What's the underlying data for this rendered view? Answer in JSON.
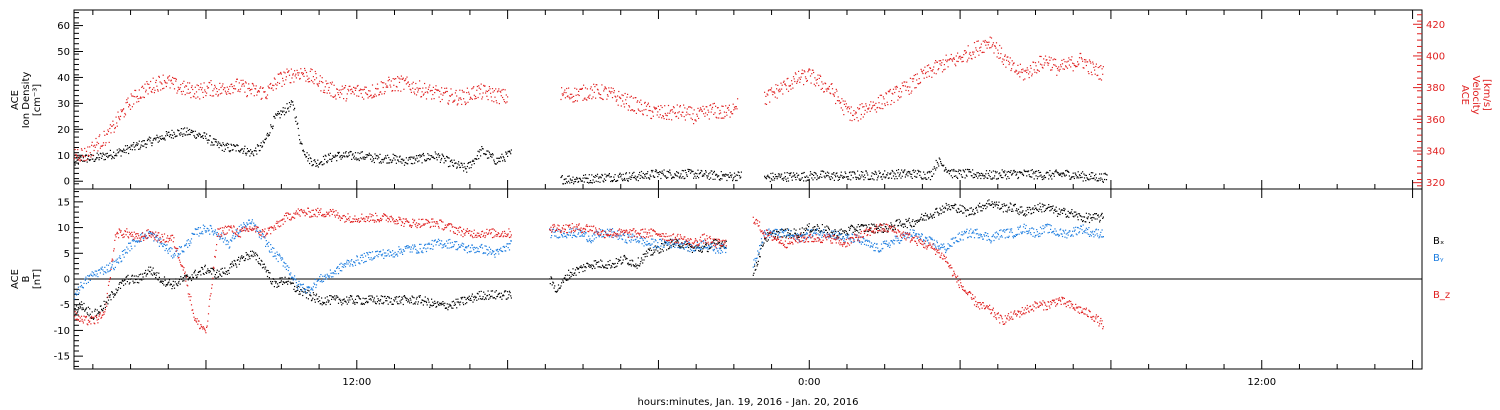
{
  "figure": {
    "xlabel": "hours:minutes, Jan. 19, 2016 - Jan. 20, 2016",
    "x_range_hours": [
      4.5,
      40.25
    ],
    "x_tick_labels": [
      {
        "hour": 12,
        "label": "12:00"
      },
      {
        "hour": 24,
        "label": "0:00"
      },
      {
        "hour": 36,
        "label": "12:00"
      }
    ],
    "x_major_ticks_hours": [
      8,
      12,
      16,
      20,
      24,
      28,
      32,
      36,
      40
    ],
    "x_minor_ticks_hours": [
      5,
      6,
      7,
      9,
      10,
      11,
      13,
      14,
      15,
      17,
      18,
      19,
      21,
      22,
      23,
      25,
      26,
      27,
      29,
      30,
      31,
      33,
      34,
      35,
      37,
      38,
      39
    ]
  },
  "chart_data": [
    {
      "type": "scatter",
      "panel": "top",
      "ylabel_left": [
        "ACE",
        "Ion Density",
        "[cm⁻³]"
      ],
      "ylabel_right": [
        "ACE",
        "Velocity",
        "[km/s]"
      ],
      "ylim_left": [
        -3,
        66
      ],
      "yticks_left": [
        0,
        10,
        20,
        30,
        40,
        50,
        60
      ],
      "ylim_right": [
        316,
        429
      ],
      "yticks_right": [
        320,
        340,
        360,
        380,
        400,
        420
      ],
      "data_gap_hours": [
        [
          16.2,
          17.3
        ],
        [
          22.2,
          22.8
        ]
      ],
      "series": [
        {
          "axis": "left",
          "color": "#000000",
          "x": [
            4.5,
            4.7,
            5.0,
            5.3,
            5.6,
            6.0,
            6.4,
            6.8,
            7.2,
            7.6,
            8.0,
            8.3,
            8.6,
            8.9,
            9.2,
            9.5,
            9.8,
            10.1,
            10.3,
            10.5,
            10.7,
            10.9,
            11.2,
            11.5,
            11.8,
            12.1,
            12.5,
            12.9,
            13.3,
            13.7,
            14.1,
            14.5,
            14.9,
            15.3,
            15.7,
            16.1,
            17.4,
            17.9,
            18.4,
            18.9,
            19.4,
            19.9,
            20.4,
            20.9,
            21.4,
            21.9,
            22.2,
            22.8,
            23.3,
            23.8,
            24.3,
            24.8,
            25.3,
            25.8,
            26.3,
            26.8,
            27.2,
            27.4,
            27.8,
            28.3,
            28.8,
            29.3,
            29.8,
            30.3,
            30.8,
            31.3,
            31.9
          ],
          "y": [
            7,
            9,
            9,
            10,
            11,
            13,
            15,
            17,
            19,
            19,
            17,
            14,
            13,
            13,
            11,
            14,
            24,
            28,
            30,
            15,
            9,
            7,
            9,
            10,
            10,
            10,
            9,
            9,
            8,
            9,
            10,
            7,
            5,
            12,
            8,
            11,
            1,
            1,
            1.5,
            2,
            2,
            3,
            3,
            3,
            2.5,
            2,
            2.5,
            1.5,
            2,
            2,
            2.5,
            2,
            2.5,
            2.5,
            3,
            3,
            2.5,
            8,
            3,
            3,
            2.5,
            3,
            3,
            2.5,
            3,
            2,
            1.5
          ]
        },
        {
          "axis": "right",
          "color": "#e02020",
          "x": [
            4.5,
            4.8,
            5.1,
            5.4,
            5.7,
            6.0,
            6.3,
            6.6,
            6.9,
            7.2,
            7.5,
            7.8,
            8.1,
            8.4,
            8.7,
            9.0,
            9.3,
            9.6,
            9.9,
            10.2,
            10.5,
            10.8,
            11.1,
            11.4,
            11.7,
            12.0,
            12.4,
            12.8,
            13.2,
            13.6,
            14.0,
            14.4,
            14.8,
            15.2,
            15.6,
            16.0,
            17.4,
            17.8,
            18.2,
            18.6,
            19.0,
            19.4,
            19.8,
            20.2,
            20.6,
            21.0,
            21.4,
            21.8,
            22.1,
            22.8,
            23.1,
            23.4,
            23.7,
            24.0,
            24.3,
            24.6,
            24.9,
            25.2,
            25.5,
            25.8,
            26.1,
            26.4,
            26.7,
            27.0,
            27.3,
            27.6,
            27.9,
            28.2,
            28.5,
            28.8,
            29.1,
            29.4,
            29.7,
            30.0,
            30.3,
            30.6,
            30.9,
            31.2,
            31.5,
            31.8
          ],
          "y": [
            339,
            338,
            345,
            350,
            362,
            372,
            378,
            382,
            385,
            381,
            379,
            378,
            380,
            379,
            382,
            380,
            378,
            377,
            385,
            388,
            390,
            387,
            382,
            378,
            377,
            378,
            378,
            382,
            383,
            380,
            377,
            375,
            374,
            378,
            376,
            374,
            376,
            376,
            378,
            377,
            373,
            369,
            365,
            364,
            365,
            362,
            366,
            364,
            372,
            373,
            378,
            382,
            386,
            388,
            383,
            378,
            368,
            362,
            368,
            370,
            374,
            378,
            382,
            388,
            392,
            396,
            398,
            402,
            406,
            410,
            400,
            392,
            389,
            394,
            398,
            392,
            395,
            398,
            392,
            389
          ]
        }
      ]
    },
    {
      "type": "scatter",
      "panel": "bottom",
      "ylabel_left": [
        "ACE",
        "B",
        "[nT]"
      ],
      "ylim": [
        -17.5,
        17.5
      ],
      "yticks": [
        -15,
        -10,
        -5,
        0,
        5,
        10,
        15
      ],
      "zero_line": true,
      "data_gap_hours": [
        [
          16.2,
          17.1
        ],
        [
          21.9,
          22.5
        ]
      ],
      "series": [
        {
          "name": "Bₓ",
          "color": "#000000",
          "x": [
            4.5,
            4.7,
            5.0,
            5.3,
            5.6,
            5.9,
            6.2,
            6.5,
            6.8,
            7.1,
            7.4,
            7.7,
            8.0,
            8.3,
            8.6,
            8.9,
            9.2,
            9.5,
            9.8,
            10.1,
            10.4,
            10.7,
            11.0,
            11.3,
            11.7,
            12.1,
            12.5,
            12.9,
            13.3,
            13.7,
            14.1,
            14.5,
            14.9,
            15.3,
            15.7,
            16.1,
            17.1,
            17.3,
            17.6,
            17.9,
            18.2,
            18.5,
            18.8,
            19.1,
            19.4,
            19.7,
            20.0,
            20.3,
            20.6,
            20.9,
            21.2,
            21.5,
            21.8,
            22.5,
            22.8,
            23.1,
            23.4,
            23.7,
            24.0,
            24.3,
            24.6,
            24.9,
            25.2,
            25.5,
            25.8,
            26.1,
            26.4,
            26.7,
            27.0,
            27.3,
            27.6,
            27.9,
            28.2,
            28.5,
            28.8,
            29.1,
            29.4,
            29.7,
            30.0,
            30.3,
            30.6,
            30.9,
            31.2,
            31.5,
            31.8
          ],
          "y": [
            -6,
            -5,
            -7,
            -5,
            -2,
            0,
            0,
            2,
            0,
            -1,
            0,
            1,
            2,
            1,
            2,
            4,
            5,
            3,
            -1,
            0,
            -2,
            -3,
            -4,
            -4,
            -4,
            -4,
            -4,
            -4,
            -4,
            -4,
            -5,
            -5,
            -4,
            -3,
            -3,
            -3,
            0,
            -2,
            1,
            2,
            3,
            3,
            3,
            4,
            3,
            5,
            6,
            7,
            7,
            6,
            6,
            7,
            7,
            1,
            8,
            9,
            9,
            9,
            10,
            10,
            9,
            9,
            10,
            10,
            10,
            10,
            11,
            11,
            12,
            13,
            14,
            14,
            13,
            14,
            15,
            14,
            14,
            13,
            14,
            14,
            13,
            13,
            12,
            12,
            12
          ]
        },
        {
          "name": "Bᵧ",
          "color": "#1e7ee0",
          "x": [
            4.5,
            4.7,
            5.0,
            5.3,
            5.6,
            5.9,
            6.2,
            6.5,
            6.8,
            7.1,
            7.4,
            7.7,
            8.0,
            8.3,
            8.6,
            8.9,
            9.2,
            9.5,
            9.8,
            10.1,
            10.4,
            10.7,
            11.0,
            11.3,
            11.7,
            12.1,
            12.5,
            12.9,
            13.3,
            13.7,
            14.1,
            14.5,
            14.9,
            15.3,
            15.7,
            16.1,
            17.1,
            17.3,
            17.6,
            17.9,
            18.2,
            18.5,
            18.8,
            19.1,
            19.4,
            19.7,
            20.0,
            20.3,
            20.6,
            20.9,
            21.2,
            21.5,
            21.8,
            22.5,
            22.8,
            23.1,
            23.4,
            23.7,
            24.0,
            24.3,
            24.6,
            24.9,
            25.2,
            25.5,
            25.8,
            26.1,
            26.4,
            26.7,
            27.0,
            27.3,
            27.6,
            27.9,
            28.2,
            28.5,
            28.8,
            29.1,
            29.4,
            29.7,
            30.0,
            30.3,
            30.6,
            30.9,
            31.2,
            31.5,
            31.8
          ],
          "y": [
            -3,
            -1,
            1,
            2,
            3,
            6,
            8,
            9,
            7,
            5,
            6,
            9,
            10,
            9,
            7,
            10,
            11,
            8,
            5,
            3,
            -1,
            -2,
            0,
            1,
            3,
            4,
            5,
            5,
            6,
            6,
            7,
            7,
            6,
            6,
            5,
            7,
            9,
            9,
            9,
            9,
            8,
            9,
            9,
            8,
            8,
            7,
            7,
            7,
            7,
            6,
            7,
            6,
            6,
            3,
            9,
            9,
            9,
            8,
            9,
            9,
            9,
            8,
            8,
            7,
            6,
            7,
            8,
            9,
            8,
            7,
            6,
            8,
            9,
            9,
            8,
            9,
            9,
            10,
            9,
            10,
            9,
            9,
            10,
            9,
            9
          ]
        },
        {
          "name": "B_z",
          "color": "#e02020",
          "x": [
            4.5,
            4.7,
            5.0,
            5.3,
            5.6,
            5.9,
            6.2,
            6.5,
            6.8,
            7.1,
            7.4,
            7.7,
            8.0,
            8.3,
            8.6,
            8.9,
            9.2,
            9.5,
            9.8,
            10.1,
            10.4,
            10.7,
            11.0,
            11.3,
            11.7,
            12.1,
            12.5,
            12.9,
            13.3,
            13.7,
            14.1,
            14.5,
            14.9,
            15.3,
            15.7,
            16.1,
            17.1,
            17.3,
            17.6,
            17.9,
            18.2,
            18.5,
            18.8,
            19.1,
            19.4,
            19.7,
            20.0,
            20.3,
            20.6,
            20.9,
            21.2,
            21.5,
            21.8,
            22.5,
            22.8,
            23.1,
            23.4,
            23.7,
            24.0,
            24.3,
            24.6,
            24.9,
            25.2,
            25.5,
            25.8,
            26.1,
            26.4,
            26.7,
            27.0,
            27.3,
            27.6,
            27.9,
            28.2,
            28.5,
            28.8,
            29.1,
            29.4,
            29.7,
            30.0,
            30.3,
            30.6,
            30.9,
            31.2,
            31.5,
            31.8
          ],
          "y": [
            -7,
            -8,
            -8,
            -7,
            9,
            9,
            8,
            9,
            8,
            8,
            2,
            -8,
            -10,
            9,
            10,
            9,
            10,
            9,
            10,
            12,
            13,
            13,
            13,
            13,
            12,
            12,
            12,
            12,
            11,
            11,
            11,
            10,
            9,
            9,
            9,
            9,
            10,
            10,
            10,
            10,
            10,
            9,
            9,
            9,
            9,
            9,
            9,
            8,
            8,
            7,
            8,
            7,
            7,
            12,
            9,
            8,
            7,
            8,
            8,
            8,
            8,
            7,
            8,
            9,
            10,
            10,
            9,
            8,
            7,
            6,
            4,
            0,
            -3,
            -5,
            -6,
            -8,
            -7,
            -6,
            -5,
            -5,
            -4,
            -5,
            -6,
            -7,
            -9
          ]
        }
      ]
    }
  ]
}
